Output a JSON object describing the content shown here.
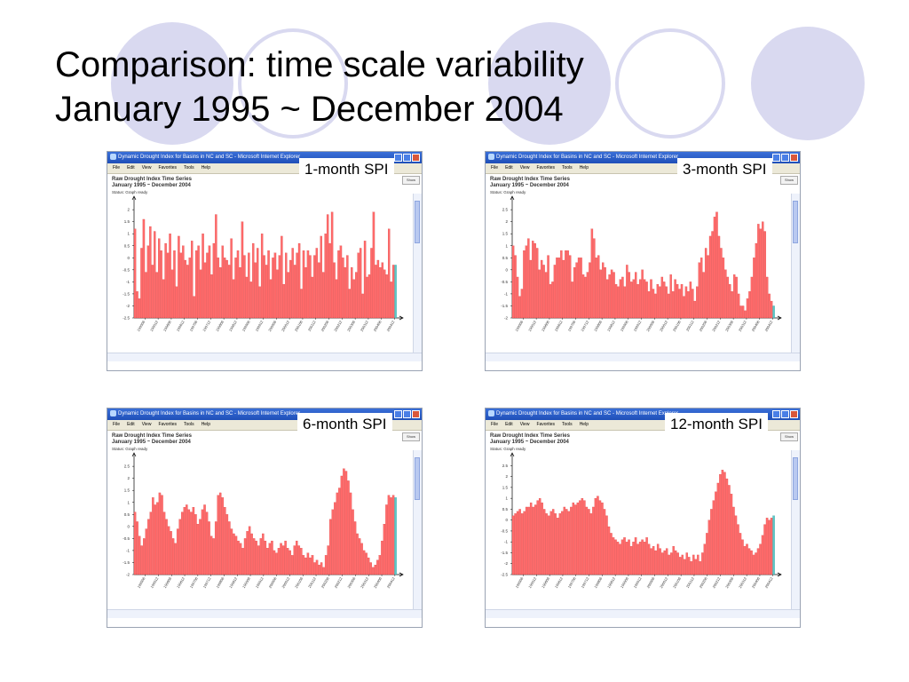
{
  "slide": {
    "title_line1": "Comparison: time scale variability",
    "title_line2": "January 1995 ~ December 2004",
    "colors": {
      "decor": "#d9d9f0",
      "bar": "#ff6b6b",
      "bar_stroke": "#d83a3a",
      "bar_current": "#5bc8c8"
    }
  },
  "window": {
    "title": "Dynamic Drought Index for Basins in NC and SC - Microsoft Internet Explorer",
    "menu": [
      "File",
      "Edit",
      "View",
      "Favorites",
      "Tools",
      "Help"
    ],
    "graph_title_line1": "Raw Drought Index Time Series",
    "graph_title_line2": "January 1995 ~ December 2004",
    "status": "Status: Graph ready",
    "show_button": "Show"
  },
  "chart_data": [
    {
      "type": "bar",
      "label": "1-month SPI",
      "ylim": [
        -2.5,
        2.3
      ],
      "yticks": [
        -2.5,
        -2,
        -1.5,
        -1,
        -0.5,
        0,
        0.5,
        1,
        1.5,
        2
      ],
      "xticks": [
        "199506",
        "199512",
        "199606",
        "199612",
        "199706",
        "199712",
        "199806",
        "199812",
        "199906",
        "199912",
        "200006",
        "200012",
        "200106",
        "200112",
        "200206",
        "200212",
        "200306",
        "200312",
        "200406",
        "200412"
      ],
      "values": [
        1.2,
        -1.4,
        -1.7,
        0.4,
        1.6,
        -0.6,
        0.5,
        1.3,
        -0.3,
        1.1,
        -0.6,
        0.8,
        0.3,
        -0.9,
        0.6,
        0.2,
        1.0,
        -0.5,
        0.3,
        -1.2,
        0.9,
        0.2,
        0.5,
        -0.1,
        -0.3,
        0.0,
        0.7,
        -1.6,
        0.3,
        0.5,
        -0.5,
        1.0,
        -0.2,
        0.2,
        0.5,
        -0.7,
        0.6,
        1.8,
        0.0,
        -0.4,
        0.5,
        0.0,
        -0.1,
        -0.3,
        0.8,
        -0.9,
        0.0,
        0.3,
        -0.4,
        1.5,
        0.1,
        -0.8,
        0.2,
        -1.0,
        0.6,
        -0.2,
        0.4,
        -1.2,
        1.0,
        0.1,
        -0.3,
        0.3,
        -0.9,
        0.0,
        0.2,
        -0.5,
        0.1,
        0.9,
        -1.1,
        0.2,
        -0.6,
        -0.1,
        0.4,
        -0.3,
        0.2,
        0.6,
        -1.3,
        0.3,
        -0.4,
        0.3,
        0.1,
        -0.8,
        0.1,
        0.4,
        -0.2,
        0.9,
        -0.6,
        1.0,
        1.8,
        0.6,
        1.9,
        -0.2,
        -0.9,
        0.3,
        0.5,
        0.0,
        -0.4,
        0.1,
        -1.3,
        -0.4,
        -0.9,
        -0.6,
        0.2,
        0.4,
        -1.5,
        0.7,
        -0.8,
        -0.7,
        0.4,
        1.9,
        -0.3,
        -0.1,
        -0.4,
        -0.2,
        -0.5,
        -0.7,
        1.2,
        -1.0,
        -0.3,
        -0.3
      ]
    },
    {
      "type": "bar",
      "label": "3-month SPI",
      "ylim": [
        -2,
        2.8
      ],
      "yticks": [
        -2,
        -1.5,
        -1,
        -0.5,
        0,
        0.5,
        1,
        1.5,
        2,
        2.5
      ],
      "xticks": [
        "199506",
        "199512",
        "199606",
        "199612",
        "199706",
        "199712",
        "199806",
        "199812",
        "199906",
        "199912",
        "200006",
        "200012",
        "200106",
        "200112",
        "200206",
        "200212",
        "200306",
        "200312",
        "200406",
        "200412"
      ],
      "values": [
        1.0,
        0.6,
        -0.3,
        -1.1,
        -0.8,
        0.8,
        1.0,
        1.3,
        0.4,
        1.2,
        1.1,
        0.9,
        0.0,
        0.4,
        0.2,
        -0.1,
        0.6,
        -0.6,
        -0.5,
        0.2,
        0.5,
        0.5,
        0.8,
        0.4,
        0.8,
        0.8,
        0.6,
        -0.5,
        0.1,
        0.3,
        0.5,
        0.5,
        -0.2,
        -0.3,
        -0.1,
        0.3,
        1.7,
        1.3,
        0.5,
        0.6,
        0.0,
        0.3,
        0.1,
        -0.4,
        -0.2,
        0.0,
        -0.1,
        -0.6,
        -0.7,
        -0.4,
        -0.3,
        -0.7,
        0.2,
        -0.1,
        -0.5,
        -0.4,
        -0.1,
        -0.6,
        -0.4,
        0.0,
        -0.4,
        -0.5,
        -0.9,
        -0.4,
        -0.8,
        -1.0,
        -0.6,
        -0.7,
        -0.3,
        -0.5,
        -0.7,
        -1.0,
        -0.2,
        -0.9,
        -0.4,
        -0.6,
        -0.8,
        -0.6,
        -1.1,
        -0.7,
        -0.9,
        -0.5,
        -0.8,
        -1.3,
        -0.7,
        0.3,
        0.5,
        -0.1,
        0.9,
        0.6,
        1.4,
        1.6,
        2.2,
        2.4,
        1.4,
        0.9,
        0.5,
        0.0,
        -0.3,
        -0.6,
        -0.9,
        -0.2,
        -0.3,
        -1.0,
        -1.5,
        -1.5,
        -1.7,
        -1.2,
        -0.9,
        -0.3,
        0.5,
        1.1,
        1.9,
        1.7,
        2.0,
        1.6,
        -0.3,
        -1.0,
        -1.3,
        -1.5
      ]
    },
    {
      "type": "bar",
      "label": "6-month SPI",
      "ylim": [
        -2,
        2.8
      ],
      "yticks": [
        -2,
        -1.5,
        -1,
        -0.5,
        0,
        0.5,
        1,
        1.5,
        2,
        2.5
      ],
      "xticks": [
        "199506",
        "199512",
        "199606",
        "199612",
        "199706",
        "199712",
        "199806",
        "199812",
        "199906",
        "199912",
        "200006",
        "200012",
        "200106",
        "200112",
        "200206",
        "200212",
        "200306",
        "200312",
        "200406",
        "200412"
      ],
      "values": [
        0.6,
        0.2,
        -0.4,
        -0.8,
        -0.5,
        -0.1,
        0.3,
        0.6,
        1.2,
        0.9,
        1.0,
        1.4,
        1.3,
        0.6,
        0.3,
        0.0,
        -0.2,
        -0.5,
        -0.7,
        -0.1,
        0.3,
        0.6,
        0.8,
        0.9,
        0.7,
        0.6,
        0.8,
        0.5,
        0.1,
        0.3,
        0.7,
        0.9,
        0.6,
        0.2,
        -0.4,
        -0.5,
        0.2,
        1.3,
        1.4,
        1.2,
        0.8,
        0.5,
        0.2,
        -0.1,
        -0.3,
        -0.4,
        -0.6,
        -0.7,
        -0.9,
        -0.5,
        -0.2,
        0.0,
        -0.3,
        -0.5,
        -0.6,
        -0.8,
        -0.5,
        -0.3,
        -0.6,
        -0.9,
        -0.7,
        -0.6,
        -1.0,
        -1.1,
        -0.9,
        -0.7,
        -0.8,
        -0.6,
        -0.9,
        -1.0,
        -1.2,
        -0.8,
        -0.6,
        -0.8,
        -0.9,
        -1.2,
        -1.3,
        -1.1,
        -1.3,
        -1.2,
        -1.5,
        -1.4,
        -1.6,
        -1.5,
        -1.7,
        -1.2,
        -0.8,
        0.3,
        0.7,
        1.0,
        1.4,
        1.6,
        2.1,
        2.4,
        2.3,
        1.9,
        1.4,
        0.7,
        0.2,
        -0.3,
        -0.5,
        -0.7,
        -1.0,
        -1.1,
        -1.3,
        -1.5,
        -1.7,
        -1.6,
        -1.4,
        -1.2,
        -0.6,
        0.1,
        0.9,
        1.3,
        1.2,
        1.3,
        1.2
      ]
    },
    {
      "type": "bar",
      "label": "12-month SPI",
      "ylim": [
        -2.5,
        2.8
      ],
      "yticks": [
        -2.5,
        -2,
        -1.5,
        -1,
        -0.5,
        0,
        0.5,
        1,
        1.5,
        2,
        2.5
      ],
      "xticks": [
        "199506",
        "199512",
        "199606",
        "199612",
        "199706",
        "199712",
        "199806",
        "199812",
        "199906",
        "199912",
        "200006",
        "200012",
        "200106",
        "200112",
        "200206",
        "200212",
        "200306",
        "200312",
        "200406",
        "200412"
      ],
      "values": [
        0.2,
        0.3,
        0.4,
        0.5,
        0.3,
        0.4,
        0.6,
        0.6,
        0.8,
        0.6,
        0.7,
        0.9,
        1.0,
        0.8,
        0.5,
        0.3,
        0.2,
        0.4,
        0.5,
        0.3,
        0.1,
        0.3,
        0.4,
        0.6,
        0.5,
        0.4,
        0.6,
        0.8,
        0.7,
        0.8,
        0.9,
        1.0,
        0.9,
        0.6,
        0.5,
        0.3,
        0.6,
        1.0,
        1.1,
        0.9,
        0.8,
        0.5,
        0.2,
        -0.3,
        -0.6,
        -0.8,
        -0.9,
        -1.0,
        -1.1,
        -0.9,
        -0.8,
        -1.0,
        -0.9,
        -1.2,
        -1.0,
        -0.8,
        -1.1,
        -1.0,
        -0.9,
        -1.0,
        -0.8,
        -1.1,
        -1.3,
        -1.2,
        -1.4,
        -1.1,
        -1.3,
        -1.5,
        -1.4,
        -1.3,
        -1.6,
        -1.5,
        -1.2,
        -1.4,
        -1.5,
        -1.7,
        -1.6,
        -1.8,
        -1.5,
        -1.7,
        -1.9,
        -1.6,
        -1.8,
        -1.6,
        -1.9,
        -1.5,
        -1.1,
        -0.6,
        0.0,
        0.5,
        0.9,
        1.3,
        1.7,
        2.1,
        2.3,
        2.2,
        1.9,
        1.6,
        1.2,
        0.6,
        0.2,
        -0.2,
        -0.6,
        -0.9,
        -1.2,
        -1.1,
        -1.3,
        -1.4,
        -1.6,
        -1.5,
        -1.3,
        -1.1,
        -0.7,
        -0.2,
        0.1,
        0.0,
        0.1,
        0.2
      ]
    }
  ]
}
